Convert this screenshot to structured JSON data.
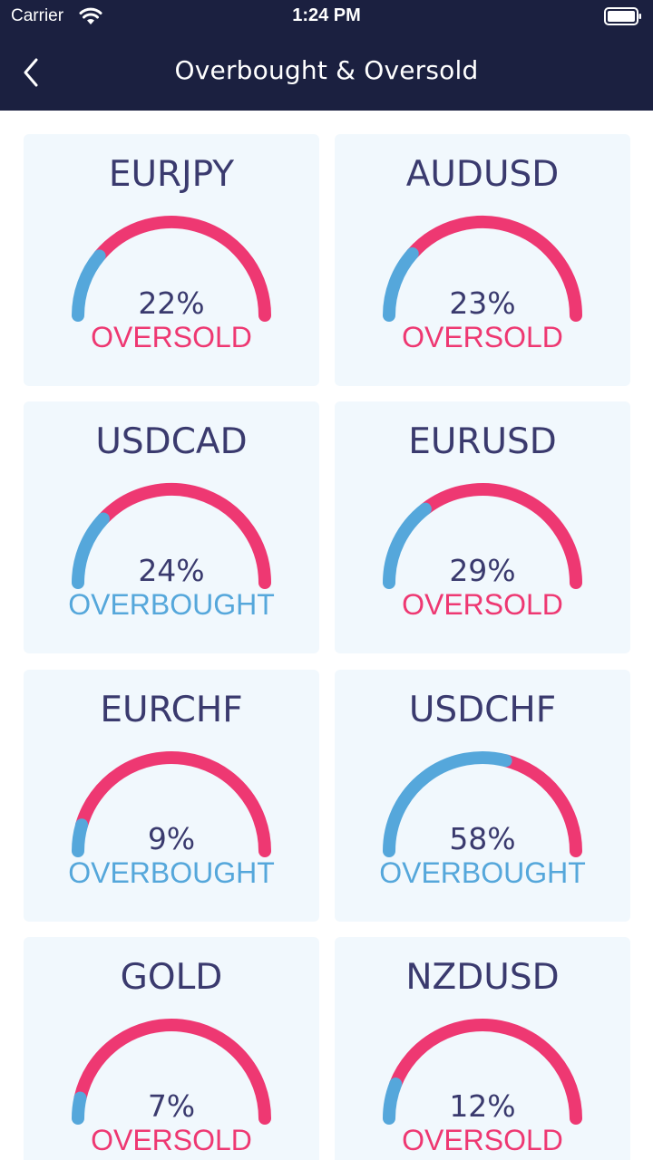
{
  "status_bar": {
    "carrier": "Carrier",
    "time": "1:24 PM"
  },
  "nav": {
    "title": "Overbought & Oversold"
  },
  "colors": {
    "blue": "#55a7db",
    "pink": "#ee3872",
    "navy": "#1b2040",
    "card_bg": "#f1f8fd",
    "text": "#3a3a6e"
  },
  "cards": [
    {
      "pair": "EURJPY",
      "value": 22,
      "percent": "22%",
      "status": "OVERSOLD"
    },
    {
      "pair": "AUDUSD",
      "value": 23,
      "percent": "23%",
      "status": "OVERSOLD"
    },
    {
      "pair": "USDCAD",
      "value": 24,
      "percent": "24%",
      "status": "OVERBOUGHT"
    },
    {
      "pair": "EURUSD",
      "value": 29,
      "percent": "29%",
      "status": "OVERSOLD"
    },
    {
      "pair": "EURCHF",
      "value": 9,
      "percent": "9%",
      "status": "OVERBOUGHT"
    },
    {
      "pair": "USDCHF",
      "value": 58,
      "percent": "58%",
      "status": "OVERBOUGHT"
    },
    {
      "pair": "GOLD",
      "value": 7,
      "percent": "7%",
      "status": "OVERSOLD"
    },
    {
      "pair": "NZDUSD",
      "value": 12,
      "percent": "12%",
      "status": "OVERSOLD"
    }
  ]
}
